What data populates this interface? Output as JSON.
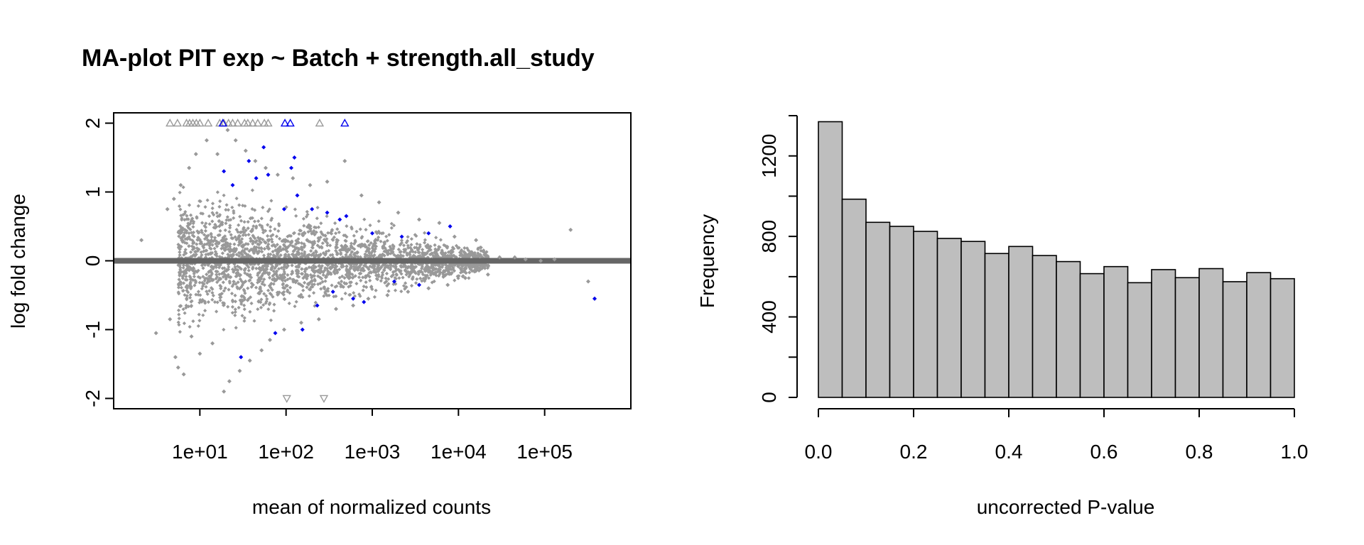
{
  "chart_data": [
    {
      "type": "scatter",
      "title": "MA-plot PIT exp ~ Batch + strength.all_study",
      "xlabel": "mean of normalized counts",
      "ylabel": "log fold change",
      "x_scale": "log10",
      "xlim": [
        1,
        1000000
      ],
      "ylim": [
        -2.15,
        2.15
      ],
      "x_tick_labels": [
        "1e+01",
        "1e+02",
        "1e+03",
        "1e+04",
        "1e+05"
      ],
      "x_tick_values": [
        10,
        100,
        1000,
        10000,
        100000
      ],
      "y_tick_labels": [
        "-2",
        "-1",
        "0",
        "1",
        "2"
      ],
      "y_tick_values": [
        -2,
        -1,
        0,
        1,
        2
      ],
      "reference_line_y": 0,
      "colors": {
        "not_significant": "#999999",
        "significant": "#0000ee",
        "reference_line": "#666666"
      },
      "series": [
        {
          "name": "",
          "marker": "diamond",
          "color": "#999999",
          "points": [
            [
              2.1,
              0.3
            ],
            [
              3.1,
              -1.05
            ],
            [
              4.2,
              0.75
            ],
            [
              4.5,
              -0.85
            ],
            [
              5.0,
              0.9
            ],
            [
              5.2,
              -1.4
            ],
            [
              5.6,
              -1.55
            ],
            [
              6.0,
              1.1
            ],
            [
              6.5,
              -1.65
            ],
            [
              7.5,
              1.35
            ],
            [
              8.0,
              -1.1
            ],
            [
              9.0,
              1.55
            ],
            [
              10,
              -1.35
            ],
            [
              12,
              1.75
            ],
            [
              14,
              -1.2
            ],
            [
              16,
              1.55
            ],
            [
              19,
              -1.9
            ],
            [
              21,
              1.9
            ],
            [
              22,
              -1.75
            ],
            [
              26,
              1.75
            ],
            [
              29,
              -1.6
            ],
            [
              34,
              1.6
            ],
            [
              38,
              -1.45
            ],
            [
              44,
              1.45
            ],
            [
              52,
              -1.3
            ],
            [
              58,
              1.35
            ],
            [
              65,
              -1.15
            ],
            [
              80,
              1.25
            ],
            [
              95,
              -1.0
            ],
            [
              120,
              1.2
            ],
            [
              150,
              -0.9
            ],
            [
              190,
              1.1
            ],
            [
              240,
              -0.85
            ],
            [
              300,
              1.15
            ],
            [
              380,
              -0.7
            ],
            [
              480,
              1.45
            ],
            [
              600,
              -0.65
            ],
            [
              750,
              0.95
            ],
            [
              900,
              -0.55
            ],
            [
              1200,
              0.85
            ],
            [
              1500,
              -0.5
            ],
            [
              2000,
              0.7
            ],
            [
              2600,
              -0.45
            ],
            [
              3500,
              0.6
            ],
            [
              4500,
              -0.4
            ],
            [
              6000,
              0.55
            ],
            [
              7500,
              -0.35
            ],
            [
              9000,
              0.35
            ],
            [
              12000,
              -0.25
            ],
            [
              16000,
              0.3
            ],
            [
              22000,
              -0.2
            ],
            [
              30000,
              0.05
            ],
            [
              45000,
              0.05
            ],
            [
              60000,
              0.02
            ],
            [
              90000,
              0.0
            ],
            [
              130000,
              0.02
            ],
            [
              200000,
              0.45
            ],
            [
              320000,
              -0.3
            ],
            [
              380000,
              -0.55
            ]
          ]
        },
        {
          "name": "",
          "marker": "diamond",
          "color": "#0000ee",
          "points": [
            [
              19,
              1.3
            ],
            [
              24,
              1.1
            ],
            [
              30,
              -1.4
            ],
            [
              37,
              1.45
            ],
            [
              45,
              1.2
            ],
            [
              55,
              1.65
            ],
            [
              62,
              1.25
            ],
            [
              75,
              -1.05
            ],
            [
              95,
              0.75
            ],
            [
              115,
              1.35
            ],
            [
              125,
              1.5
            ],
            [
              135,
              0.95
            ],
            [
              155,
              -1.0
            ],
            [
              200,
              0.75
            ],
            [
              230,
              -0.65
            ],
            [
              300,
              0.7
            ],
            [
              350,
              -0.45
            ],
            [
              420,
              0.6
            ],
            [
              500,
              0.65
            ],
            [
              600,
              -0.55
            ],
            [
              800,
              -0.6
            ],
            [
              1000,
              0.4
            ],
            [
              1800,
              -0.3
            ],
            [
              2200,
              0.35
            ],
            [
              3500,
              -0.35
            ],
            [
              4500,
              0.4
            ],
            [
              8000,
              0.5
            ],
            [
              380000,
              -0.55
            ]
          ]
        },
        {
          "name": "",
          "marker": "triangle-up",
          "color": "#999999",
          "points": [
            [
              4.5,
              2
            ],
            [
              5.5,
              2
            ],
            [
              7,
              2
            ],
            [
              7.6,
              2
            ],
            [
              8.3,
              2
            ],
            [
              9.1,
              2
            ],
            [
              10,
              2
            ],
            [
              12.5,
              2
            ],
            [
              17,
              2
            ],
            [
              19,
              2
            ],
            [
              21.5,
              2
            ],
            [
              24,
              2
            ],
            [
              27.5,
              2
            ],
            [
              33,
              2
            ],
            [
              36,
              2
            ],
            [
              41,
              2
            ],
            [
              47,
              2
            ],
            [
              56,
              2
            ],
            [
              62,
              2
            ],
            [
              245,
              2
            ]
          ]
        },
        {
          "name": "",
          "marker": "triangle-up",
          "color": "#0000ee",
          "points": [
            [
              18.5,
              2
            ],
            [
              97,
              2
            ],
            [
              112,
              2
            ],
            [
              480,
              2
            ]
          ]
        },
        {
          "name": "",
          "marker": "triangle-down",
          "color": "#999999",
          "points": [
            [
              102,
              -2
            ],
            [
              275,
              -2
            ]
          ]
        }
      ]
    },
    {
      "type": "bar",
      "title": "",
      "xlabel": "uncorrected P-value",
      "ylabel": "Frequency",
      "bin_edges": [
        0.0,
        0.05,
        0.1,
        0.15,
        0.2,
        0.25,
        0.3,
        0.35,
        0.4,
        0.45,
        0.5,
        0.55,
        0.6,
        0.65,
        0.7,
        0.75,
        0.8,
        0.85,
        0.9,
        0.95,
        1.0
      ],
      "values": [
        1370,
        985,
        870,
        850,
        825,
        790,
        775,
        715,
        750,
        705,
        675,
        615,
        650,
        570,
        635,
        595,
        640,
        575,
        620,
        590
      ],
      "xlim": [
        0,
        1
      ],
      "ylim": [
        0,
        1400
      ],
      "x_tick_labels": [
        "0.0",
        "0.2",
        "0.4",
        "0.6",
        "0.8",
        "1.0"
      ],
      "x_tick_values": [
        0,
        0.2,
        0.4,
        0.6,
        0.8,
        1.0
      ],
      "y_tick_labels": [
        "0",
        "400",
        "800",
        "1200"
      ],
      "y_tick_values": [
        0,
        400,
        800,
        1200
      ],
      "y_minor_ticks": [
        200,
        600,
        1000,
        1400
      ],
      "bar_color": "#bebebe"
    }
  ]
}
